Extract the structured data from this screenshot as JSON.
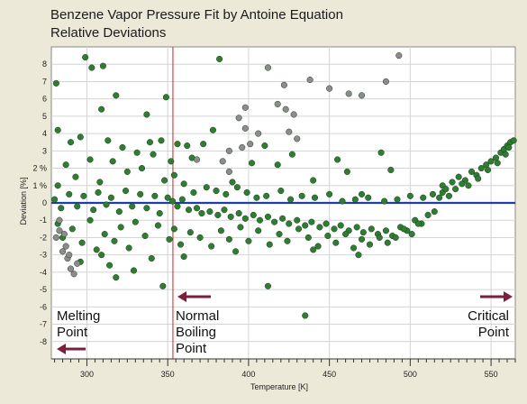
{
  "chart_data": {
    "type": "scatter",
    "title": "Benzene Vapor Pressure Fit by Antoine Equation",
    "subtitle": "Relative Deviations",
    "xlabel": "Temperature [K]",
    "ylabel": "Deviation [%]",
    "xlim": [
      278,
      565
    ],
    "ylim": [
      -9,
      9
    ],
    "xticks": [
      300,
      350,
      400,
      450,
      500,
      550
    ],
    "yticks": [
      8,
      7,
      6,
      5,
      4,
      3,
      2,
      1,
      0,
      -1,
      -2,
      -3,
      -4,
      -5,
      -6,
      -7,
      -8
    ],
    "ytick_labels": [
      "8",
      "7",
      "6",
      "5",
      "4",
      "3",
      "2 %",
      "1 %",
      "0",
      "-1",
      "-2",
      "-3",
      "-4",
      "-5",
      "-6",
      "-7",
      "-8"
    ],
    "grid": true,
    "zero_line": {
      "y": 0,
      "color": "#1f3fa8"
    },
    "reference_line": {
      "x": 353.2,
      "color": "#d02020"
    },
    "colors": {
      "included": "#2e7d32",
      "excluded": "#8c8c8c",
      "arrow": "#7a1f3c"
    },
    "annotations": [
      {
        "lines": [
          "Melting",
          "Point"
        ],
        "arrow": "left"
      },
      {
        "lines": [
          "Normal",
          "Boiling",
          "Point"
        ],
        "arrow": "left"
      },
      {
        "lines": [
          "Critical",
          "Point"
        ],
        "arrow": "right"
      }
    ],
    "series": [
      {
        "status": "included",
        "points": [
          [
            281,
            6.9
          ],
          [
            299,
            8.4
          ],
          [
            303,
            7.8
          ],
          [
            310,
            7.9
          ],
          [
            309,
            5.4
          ],
          [
            318,
            6.2
          ],
          [
            337,
            5.1
          ],
          [
            349,
            6.1
          ],
          [
            282,
            4.2
          ],
          [
            290,
            3.5
          ],
          [
            296,
            3.8
          ],
          [
            313,
            3.6
          ],
          [
            322,
            3.2
          ],
          [
            331,
            2.9
          ],
          [
            339,
            3.5
          ],
          [
            346,
            3.6
          ],
          [
            356,
            3.4
          ],
          [
            362,
            3.3
          ],
          [
            372,
            3.4
          ],
          [
            378,
            4.2
          ],
          [
            382,
            8.3
          ],
          [
            365,
            2.6
          ],
          [
            390,
            1.2
          ],
          [
            402,
            2.3
          ],
          [
            410,
            3.3
          ],
          [
            418,
            2.2
          ],
          [
            427,
            2.8
          ],
          [
            440,
            1.3
          ],
          [
            455,
            2.5
          ],
          [
            461,
            1.8
          ],
          [
            470,
            0.5
          ],
          [
            482,
            2.9
          ],
          [
            488,
            1.9
          ],
          [
            282,
            1.0
          ],
          [
            287,
            2.2
          ],
          [
            293,
            1.5
          ],
          [
            302,
            2.5
          ],
          [
            308,
            1.2
          ],
          [
            316,
            2.4
          ],
          [
            325,
            1.8
          ],
          [
            334,
            2.0
          ],
          [
            341,
            2.8
          ],
          [
            348,
            1.3
          ],
          [
            352,
            2.4
          ],
          [
            354,
            1.6
          ],
          [
            360,
            1.1
          ],
          [
            366,
            0.6
          ],
          [
            374,
            0.9
          ],
          [
            380,
            0.7
          ],
          [
            386,
            0.5
          ],
          [
            393,
            0.9
          ],
          [
            399,
            0.6
          ],
          [
            405,
            0.3
          ],
          [
            411,
            0.4
          ],
          [
            420,
            0.7
          ],
          [
            426,
            0.2
          ],
          [
            433,
            0.4
          ],
          [
            441,
            0.3
          ],
          [
            450,
            0.5
          ],
          [
            458,
            0.1
          ],
          [
            466,
            0.2
          ],
          [
            474,
            0.3
          ],
          [
            484,
            0.1
          ],
          [
            492,
            0.2
          ],
          [
            500,
            0.4
          ],
          [
            508,
            0.3
          ],
          [
            514,
            0.5
          ],
          [
            520,
            0.6
          ],
          [
            524,
            0.4
          ],
          [
            280,
            0.2
          ],
          [
            284,
            -0.3
          ],
          [
            289,
            0.5
          ],
          [
            294,
            -0.2
          ],
          [
            298,
            0.4
          ],
          [
            304,
            -0.4
          ],
          [
            307,
            0.6
          ],
          [
            312,
            -0.1
          ],
          [
            315,
            0.3
          ],
          [
            320,
            -0.5
          ],
          [
            324,
            0.7
          ],
          [
            328,
            -0.2
          ],
          [
            333,
            0.5
          ],
          [
            337,
            -0.3
          ],
          [
            342,
            0.4
          ],
          [
            345,
            -0.6
          ],
          [
            350,
            0.3
          ],
          [
            353,
            0.1
          ],
          [
            356,
            -0.2
          ],
          [
            359,
            0.2
          ],
          [
            363,
            -0.4
          ],
          [
            368,
            -0.3
          ],
          [
            371,
            -0.6
          ],
          [
            376,
            -0.5
          ],
          [
            381,
            -0.7
          ],
          [
            385,
            -0.4
          ],
          [
            389,
            -0.8
          ],
          [
            394,
            -0.6
          ],
          [
            398,
            -0.9
          ],
          [
            403,
            -0.7
          ],
          [
            407,
            -1.0
          ],
          [
            412,
            -0.8
          ],
          [
            416,
            -1.1
          ],
          [
            421,
            -0.9
          ],
          [
            425,
            -1.2
          ],
          [
            430,
            -1.0
          ],
          [
            435,
            -1.3
          ],
          [
            439,
            -1.1
          ],
          [
            444,
            -1.4
          ],
          [
            448,
            -1.2
          ],
          [
            453,
            -1.5
          ],
          [
            457,
            -1.3
          ],
          [
            462,
            -1.6
          ],
          [
            467,
            -1.4
          ],
          [
            471,
            -1.7
          ],
          [
            476,
            -1.5
          ],
          [
            480,
            -1.8
          ],
          [
            485,
            -1.6
          ],
          [
            489,
            -1.9
          ],
          [
            494,
            -1.4
          ],
          [
            498,
            -1.6
          ],
          [
            503,
            -1.0
          ],
          [
            507,
            -1.2
          ],
          [
            511,
            -0.7
          ],
          [
            515,
            -0.5
          ],
          [
            282,
            -1.2
          ],
          [
            285,
            -2.0
          ],
          [
            291,
            -1.5
          ],
          [
            297,
            -2.3
          ],
          [
            302,
            -1.0
          ],
          [
            306,
            -2.7
          ],
          [
            311,
            -1.8
          ],
          [
            314,
            -3.6
          ],
          [
            317,
            -2.2
          ],
          [
            321,
            -1.4
          ],
          [
            326,
            -2.6
          ],
          [
            330,
            -1.1
          ],
          [
            336,
            -1.9
          ],
          [
            340,
            -3.2
          ],
          [
            344,
            -1.3
          ],
          [
            347,
            -4.8
          ],
          [
            351,
            -2.1
          ],
          [
            354,
            -1.5
          ],
          [
            358,
            -2.4
          ],
          [
            364,
            -1.7
          ],
          [
            370,
            -2.0
          ],
          [
            377,
            -2.5
          ],
          [
            383,
            -1.6
          ],
          [
            388,
            -2.1
          ],
          [
            395,
            -1.4
          ],
          [
            400,
            -2.2
          ],
          [
            406,
            -1.6
          ],
          [
            413,
            -2.4
          ],
          [
            419,
            -1.8
          ],
          [
            424,
            -2.2
          ],
          [
            431,
            -1.5
          ],
          [
            437,
            -2.0
          ],
          [
            443,
            -2.5
          ],
          [
            449,
            -1.9
          ],
          [
            454,
            -2.3
          ],
          [
            460,
            -1.8
          ],
          [
            465,
            -2.6
          ],
          [
            470,
            -2.1
          ],
          [
            475,
            -2.4
          ],
          [
            481,
            -2.0
          ],
          [
            486,
            -2.3
          ],
          [
            491,
            -2.0
          ],
          [
            496,
            -1.5
          ],
          [
            501,
            -1.8
          ],
          [
            505,
            -1.2
          ],
          [
            412,
            -4.8
          ],
          [
            435,
            -6.5
          ],
          [
            318,
            -4.3
          ],
          [
            296,
            -3.4
          ],
          [
            309,
            -3.0
          ],
          [
            329,
            -3.9
          ],
          [
            360,
            -3.1
          ],
          [
            392,
            -2.8
          ],
          [
            440,
            -2.7
          ],
          [
            468,
            -3.0
          ],
          [
            520,
            1.0
          ],
          [
            526,
            1.2
          ],
          [
            530,
            1.5
          ],
          [
            534,
            1.3
          ],
          [
            538,
            1.8
          ],
          [
            541,
            1.6
          ],
          [
            544,
            2.0
          ],
          [
            547,
            2.2
          ],
          [
            550,
            2.4
          ],
          [
            553,
            2.6
          ],
          [
            556,
            2.9
          ],
          [
            558,
            3.1
          ],
          [
            560,
            3.3
          ],
          [
            562,
            3.5
          ],
          [
            564,
            3.6
          ],
          [
            536,
            1.0
          ],
          [
            542,
            1.4
          ],
          [
            548,
            1.9
          ],
          [
            554,
            2.3
          ],
          [
            559,
            2.8
          ],
          [
            561,
            3.2
          ],
          [
            528,
            0.8
          ],
          [
            532,
            1.1
          ],
          [
            518,
            0.3
          ],
          [
            522,
            0.8
          ]
        ]
      },
      {
        "status": "excluded",
        "points": [
          [
            412,
            7.8
          ],
          [
            422,
            6.8
          ],
          [
            438,
            7.1
          ],
          [
            450,
            6.6
          ],
          [
            462,
            6.3
          ],
          [
            470,
            6.2
          ],
          [
            485,
            7.0
          ],
          [
            493,
            8.5
          ],
          [
            398,
            5.5
          ],
          [
            394,
            4.9
          ],
          [
            398,
            4.3
          ],
          [
            406,
            4.0
          ],
          [
            418,
            5.7
          ],
          [
            423,
            5.4
          ],
          [
            428,
            5.1
          ],
          [
            396,
            3.2
          ],
          [
            401,
            3.4
          ],
          [
            388,
            3.0
          ],
          [
            384,
            2.4
          ],
          [
            388,
            1.8
          ],
          [
            368,
            2.5
          ],
          [
            430,
            3.7
          ],
          [
            425,
            4.1
          ],
          [
            281,
            -2.0
          ],
          [
            283,
            -1.6
          ],
          [
            285,
            -2.8
          ],
          [
            288,
            -3.2
          ],
          [
            290,
            -3.8
          ],
          [
            292,
            -4.1
          ],
          [
            294,
            -3.5
          ],
          [
            287,
            -2.5
          ],
          [
            283,
            -1.0
          ],
          [
            286,
            -1.8
          ],
          [
            289,
            -3.0
          ]
        ]
      }
    ]
  }
}
